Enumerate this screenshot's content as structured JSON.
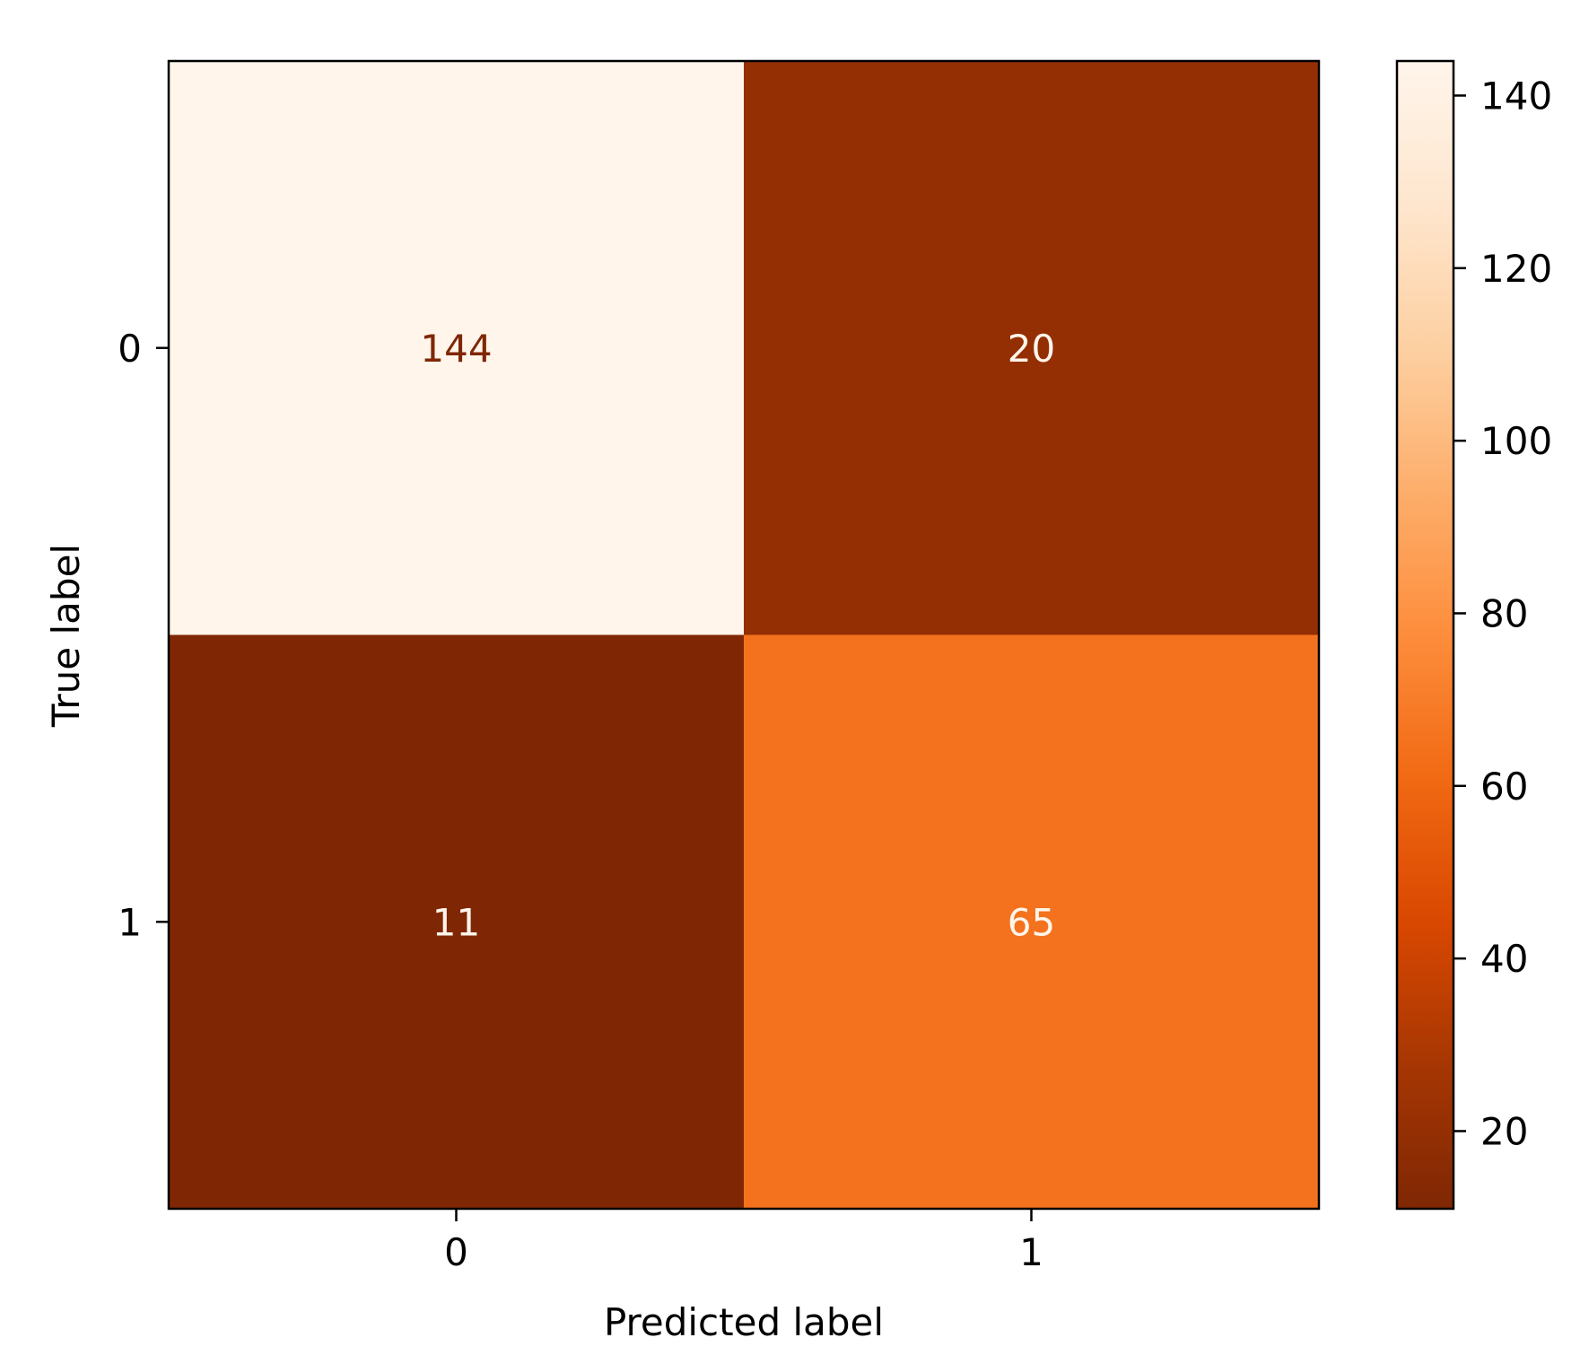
{
  "chart_data": {
    "type": "heatmap",
    "xlabel": "Predicted label",
    "ylabel": "True label",
    "x_categories": [
      "0",
      "1"
    ],
    "y_categories": [
      "0",
      "1"
    ],
    "values": [
      [
        144,
        20
      ],
      [
        11,
        65
      ]
    ],
    "colormap": "Oranges_r",
    "value_range": [
      11,
      144
    ],
    "colorbar": {
      "ticks": [
        20,
        40,
        60,
        80,
        100,
        120,
        140
      ],
      "tick_labels": [
        "20",
        "40",
        "60",
        "80",
        "100",
        "120",
        "140"
      ]
    },
    "colors": {
      "low": "#7f2704",
      "high": "#fff5eb",
      "dark_text": "#7f2704",
      "light_text": "#fff5eb"
    }
  }
}
